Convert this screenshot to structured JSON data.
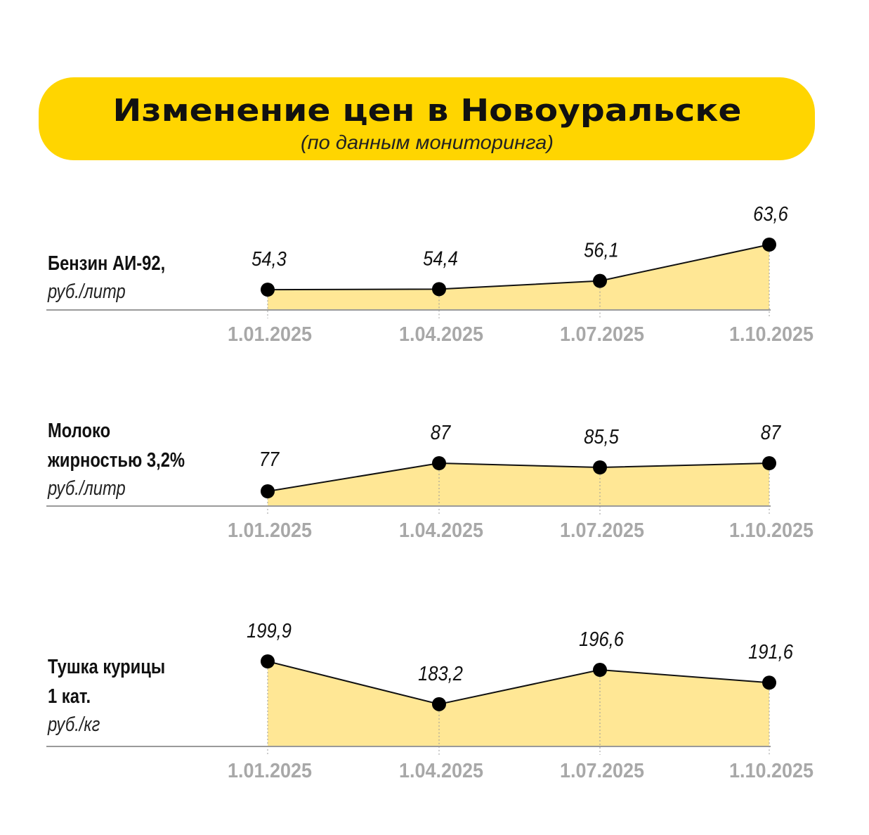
{
  "header": {
    "title": "Изменение цен в Новоуральске",
    "subtitle": "(по данным мониторинга)"
  },
  "colors": {
    "banner": "#FFD500",
    "fill": "#FFE795",
    "line": "#111111",
    "axis": "#9a9a9a",
    "date": "#a8a8a8"
  },
  "chart_data": [
    {
      "type": "area",
      "label_lines": [
        "Бензин АИ-92,"
      ],
      "unit": "руб./литр",
      "categories": [
        "1.01.2025",
        "1.04.2025",
        "1.07.2025",
        "1.10.2025"
      ],
      "values": [
        54.3,
        54.4,
        56.1,
        63.6
      ],
      "value_labels": [
        "54,3",
        "54,4",
        "56,1",
        "63,6"
      ],
      "ylim": [
        50.1,
        63.6
      ]
    },
    {
      "type": "area",
      "label_lines": [
        "Молоко",
        "жирностью 3,2%"
      ],
      "unit": "руб./литр",
      "categories": [
        "1.01.2025",
        "1.04.2025",
        "1.07.2025",
        "1.10.2025"
      ],
      "values": [
        77,
        87,
        85.5,
        87
      ],
      "value_labels": [
        "77",
        "87",
        "85,5",
        "87"
      ],
      "ylim": [
        71.75,
        87
      ]
    },
    {
      "type": "area",
      "label_lines": [
        "Тушка курицы",
        "1 кат."
      ],
      "unit": "руб./кг",
      "categories": [
        "1.01.2025",
        "1.04.2025",
        "1.07.2025",
        "1.10.2025"
      ],
      "values": [
        199.9,
        183.2,
        196.6,
        191.6
      ],
      "value_labels": [
        "199,9",
        "183,2",
        "196,6",
        "191,6"
      ],
      "ylim": [
        166.7,
        199.9
      ]
    }
  ]
}
